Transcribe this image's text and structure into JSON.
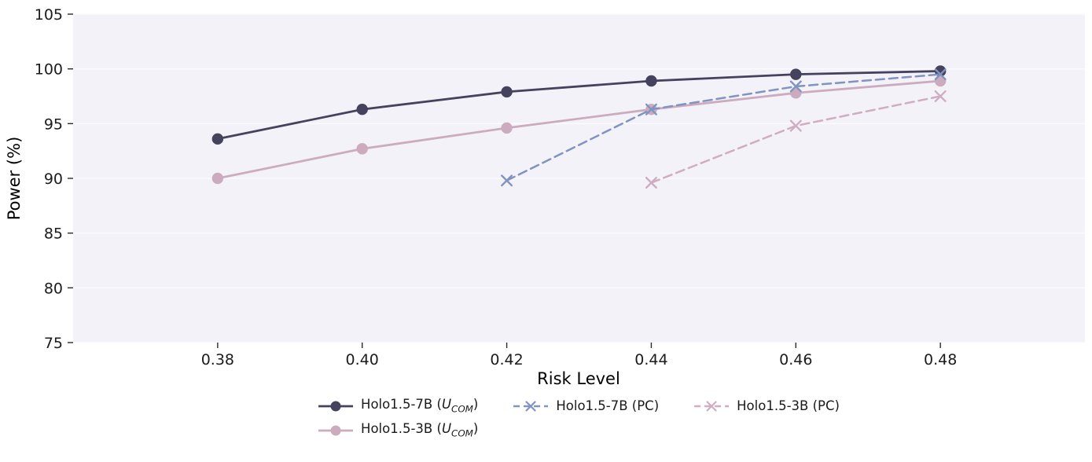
{
  "figure": {
    "background": "#ffffff",
    "plot_background": "#f3f2f9",
    "grid_color": "#fbfafd",
    "tick_color": "#2a2a2a",
    "text_color": "#1c1c1c"
  },
  "chart_data": {
    "type": "line",
    "title": "",
    "xlabel": "Risk Level",
    "ylabel": "Power (%)",
    "xlim": [
      0.36,
      0.5
    ],
    "ylim": [
      75,
      105
    ],
    "xticks": [
      0.38,
      0.4,
      0.42,
      0.44,
      0.46,
      0.48
    ],
    "xtick_labels": [
      "0.38",
      "0.40",
      "0.42",
      "0.44",
      "0.46",
      "0.48"
    ],
    "yticks": [
      75,
      80,
      85,
      90,
      95,
      100,
      105
    ],
    "ytick_labels": [
      "75",
      "80",
      "85",
      "90",
      "95",
      "100",
      "105"
    ],
    "grid": "horizontal",
    "legend_position": "bottom-center",
    "series": [
      {
        "id": "holo15-7b-ucom",
        "name": "Holo1.5-7B (U_COM)",
        "color": "#45425e",
        "line": "solid",
        "marker": "circle",
        "x": [
          0.38,
          0.4,
          0.42,
          0.44,
          0.46,
          0.48
        ],
        "y": [
          93.6,
          96.3,
          97.9,
          98.9,
          99.5,
          99.8
        ]
      },
      {
        "id": "holo15-3b-ucom",
        "name": "Holo1.5-3B (U_COM)",
        "color": "#cdabbf",
        "line": "solid",
        "marker": "circle",
        "x": [
          0.38,
          0.4,
          0.42,
          0.44,
          0.46,
          0.48
        ],
        "y": [
          90.0,
          92.7,
          94.6,
          96.3,
          97.8,
          98.9
        ]
      },
      {
        "id": "holo15-7b-pc",
        "name": "Holo1.5-7B (PC)",
        "color": "#8093c1",
        "line": "dashed",
        "marker": "x",
        "x": [
          0.42,
          0.44,
          0.46,
          0.48
        ],
        "y": [
          89.8,
          96.3,
          98.4,
          99.5
        ]
      },
      {
        "id": "holo15-3b-pc",
        "name": "Holo1.5-3B (PC)",
        "color": "#cfadc2",
        "line": "dashed",
        "marker": "x",
        "x": [
          0.44,
          0.46,
          0.48
        ],
        "y": [
          89.6,
          94.8,
          97.5
        ]
      }
    ]
  },
  "legend": {
    "items": [
      {
        "id": "holo15-7b-ucom",
        "label_pre": "Holo1.5-7B (",
        "math_var": "U",
        "math_sub": "COM",
        "label_post": ")",
        "color": "#45425e",
        "line": "solid",
        "marker": "circle",
        "row": 1,
        "col": 1
      },
      {
        "id": "holo15-3b-ucom",
        "label_pre": "Holo1.5-3B (",
        "math_var": "U",
        "math_sub": "COM",
        "label_post": ")",
        "color": "#cdabbf",
        "line": "solid",
        "marker": "circle",
        "row": 2,
        "col": 1
      },
      {
        "id": "holo15-7b-pc",
        "label": "Holo1.5-7B (PC)",
        "color": "#8093c1",
        "line": "dashed",
        "marker": "x",
        "row": 1,
        "col": 2
      },
      {
        "id": "holo15-3b-pc",
        "label": "Holo1.5-3B (PC)",
        "color": "#cfadc2",
        "line": "dashed",
        "marker": "x",
        "row": 1,
        "col": 3
      }
    ]
  }
}
